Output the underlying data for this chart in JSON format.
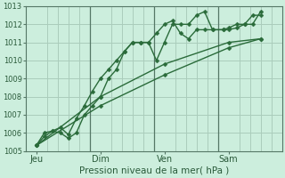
{
  "xlabel": "Pression niveau de la mer( hPa )",
  "bg_color": "#cceedd",
  "grid_color": "#aaccbb",
  "line_color": "#2a6b3a",
  "vline_color": "#557766",
  "ylim": [
    1005,
    1013
  ],
  "yticks": [
    1005,
    1006,
    1007,
    1008,
    1009,
    1010,
    1011,
    1012,
    1013
  ],
  "xlim": [
    0,
    192
  ],
  "day_labels": [
    "Jeu",
    "Dim",
    "Ven",
    "Sam"
  ],
  "day_positions": [
    8,
    56,
    104,
    152
  ],
  "vline_positions": [
    48,
    96,
    144
  ],
  "series": [
    {
      "x": [
        8,
        14,
        20,
        26,
        32,
        38,
        44,
        50,
        56,
        62,
        68,
        74,
        80,
        86,
        92,
        98,
        104,
        110,
        116,
        122,
        128,
        134,
        140,
        148,
        152,
        158,
        164,
        170,
        176
      ],
      "y": [
        1005.3,
        1005.8,
        1006.1,
        1006.3,
        1005.9,
        1006.8,
        1007.5,
        1008.3,
        1009.0,
        1009.5,
        1010.0,
        1010.5,
        1011.0,
        1011.0,
        1011.0,
        1010.0,
        1011.0,
        1012.0,
        1012.0,
        1012.0,
        1012.5,
        1012.7,
        1011.7,
        1011.7,
        1011.7,
        1011.8,
        1012.0,
        1012.0,
        1012.7
      ],
      "marker": true
    },
    {
      "x": [
        8,
        14,
        20,
        26,
        32,
        38,
        44,
        50,
        56,
        62,
        68,
        74,
        80,
        86,
        92,
        98,
        104,
        110,
        116,
        122,
        128,
        134,
        140,
        148,
        152,
        158,
        164,
        170,
        176
      ],
      "y": [
        1005.3,
        1006.0,
        1006.1,
        1006.0,
        1005.7,
        1006.0,
        1007.0,
        1007.5,
        1008.0,
        1009.0,
        1009.5,
        1010.5,
        1011.0,
        1011.0,
        1011.0,
        1011.5,
        1012.0,
        1012.2,
        1011.5,
        1011.2,
        1011.7,
        1011.7,
        1011.7,
        1011.7,
        1011.8,
        1012.0,
        1012.0,
        1012.5,
        1012.5
      ],
      "marker": true
    },
    {
      "x": [
        8,
        56,
        104,
        152,
        176
      ],
      "y": [
        1005.3,
        1007.5,
        1009.2,
        1010.7,
        1011.2
      ],
      "marker": true
    },
    {
      "x": [
        8,
        56,
        104,
        152,
        176
      ],
      "y": [
        1005.3,
        1008.0,
        1009.8,
        1011.0,
        1011.2
      ],
      "marker": true
    }
  ],
  "marker_size": 2.5,
  "line_width": 1.0
}
